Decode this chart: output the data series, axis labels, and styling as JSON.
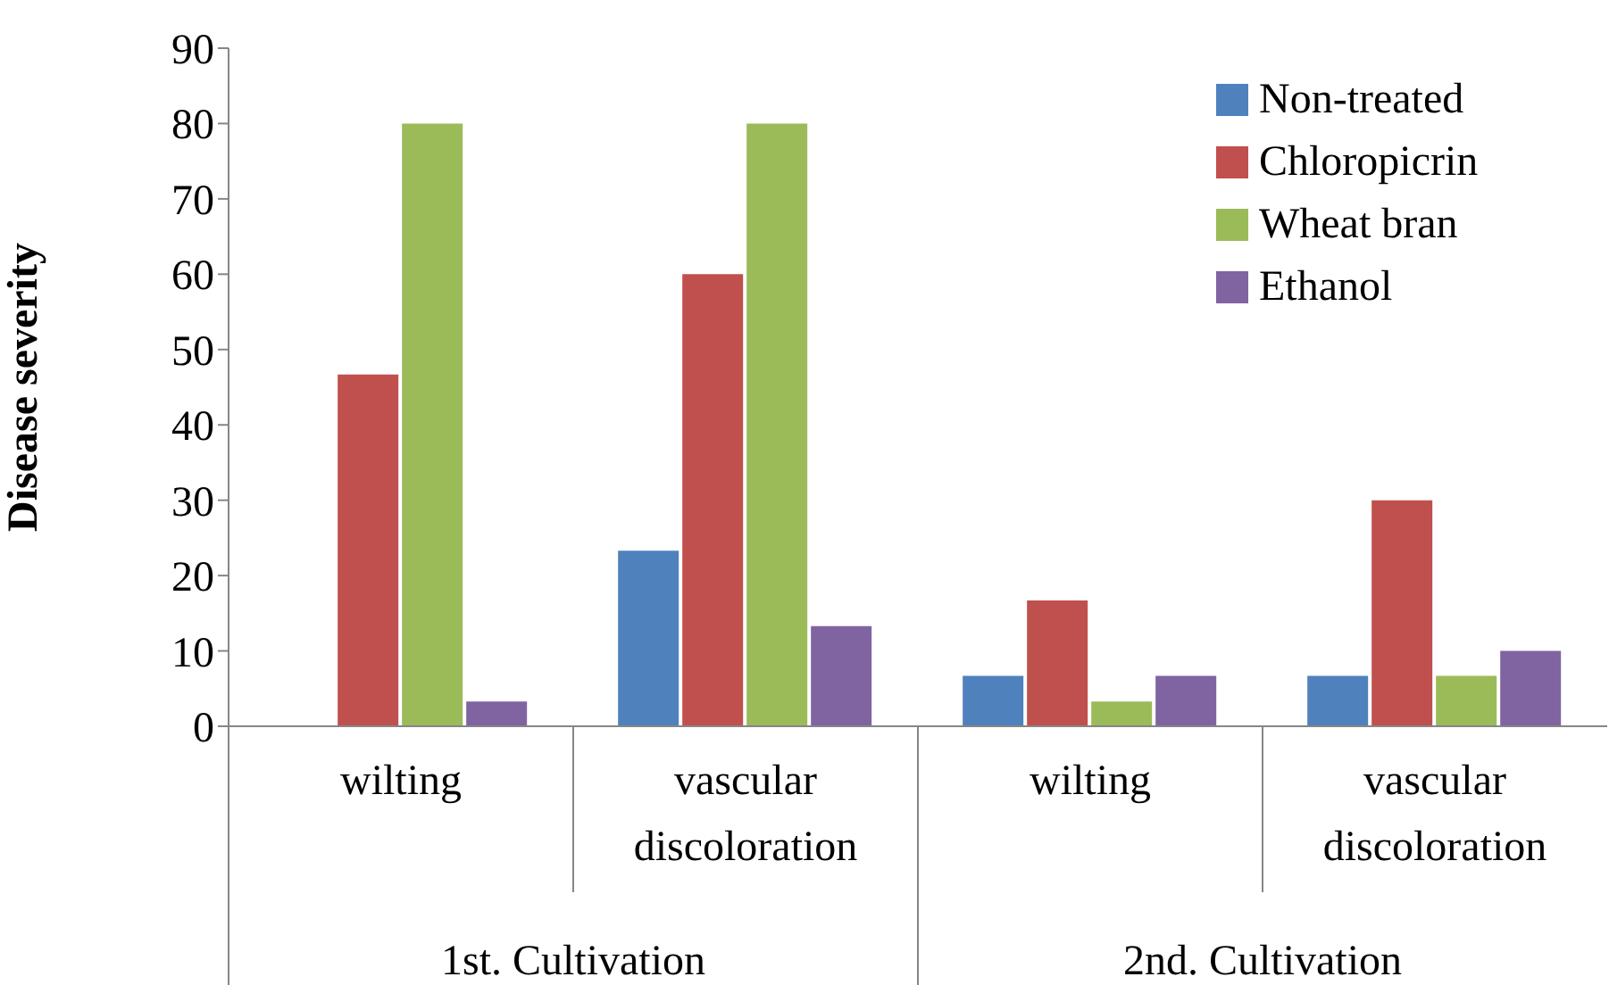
{
  "chart_data": {
    "type": "bar",
    "ylabel": "Disease severity",
    "categories": [
      "wilting",
      "vascular discoloration",
      "wilting",
      "vascular discoloration"
    ],
    "annotations": [
      "1st. Cultivation",
      "2nd. Cultivation"
    ],
    "series": [
      {
        "name": "Non-treated",
        "color": "#4f81bd",
        "values": [
          0,
          23.3,
          6.7,
          6.7
        ]
      },
      {
        "name": "Chloropicrin",
        "color": "#c0504d",
        "values": [
          46.7,
          60,
          16.7,
          30
        ]
      },
      {
        "name": "Wheat bran",
        "color": "#9bbb59",
        "values": [
          80,
          80,
          3.3,
          6.7
        ]
      },
      {
        "name": "Ethanol",
        "color": "#8064a2",
        "values": [
          3.3,
          13.3,
          6.7,
          10
        ]
      }
    ],
    "ylim": [
      0,
      90
    ],
    "yticks": [
      0,
      10,
      20,
      30,
      40,
      50,
      60,
      70,
      80,
      90
    ],
    "grid": false,
    "legend": "top right"
  }
}
